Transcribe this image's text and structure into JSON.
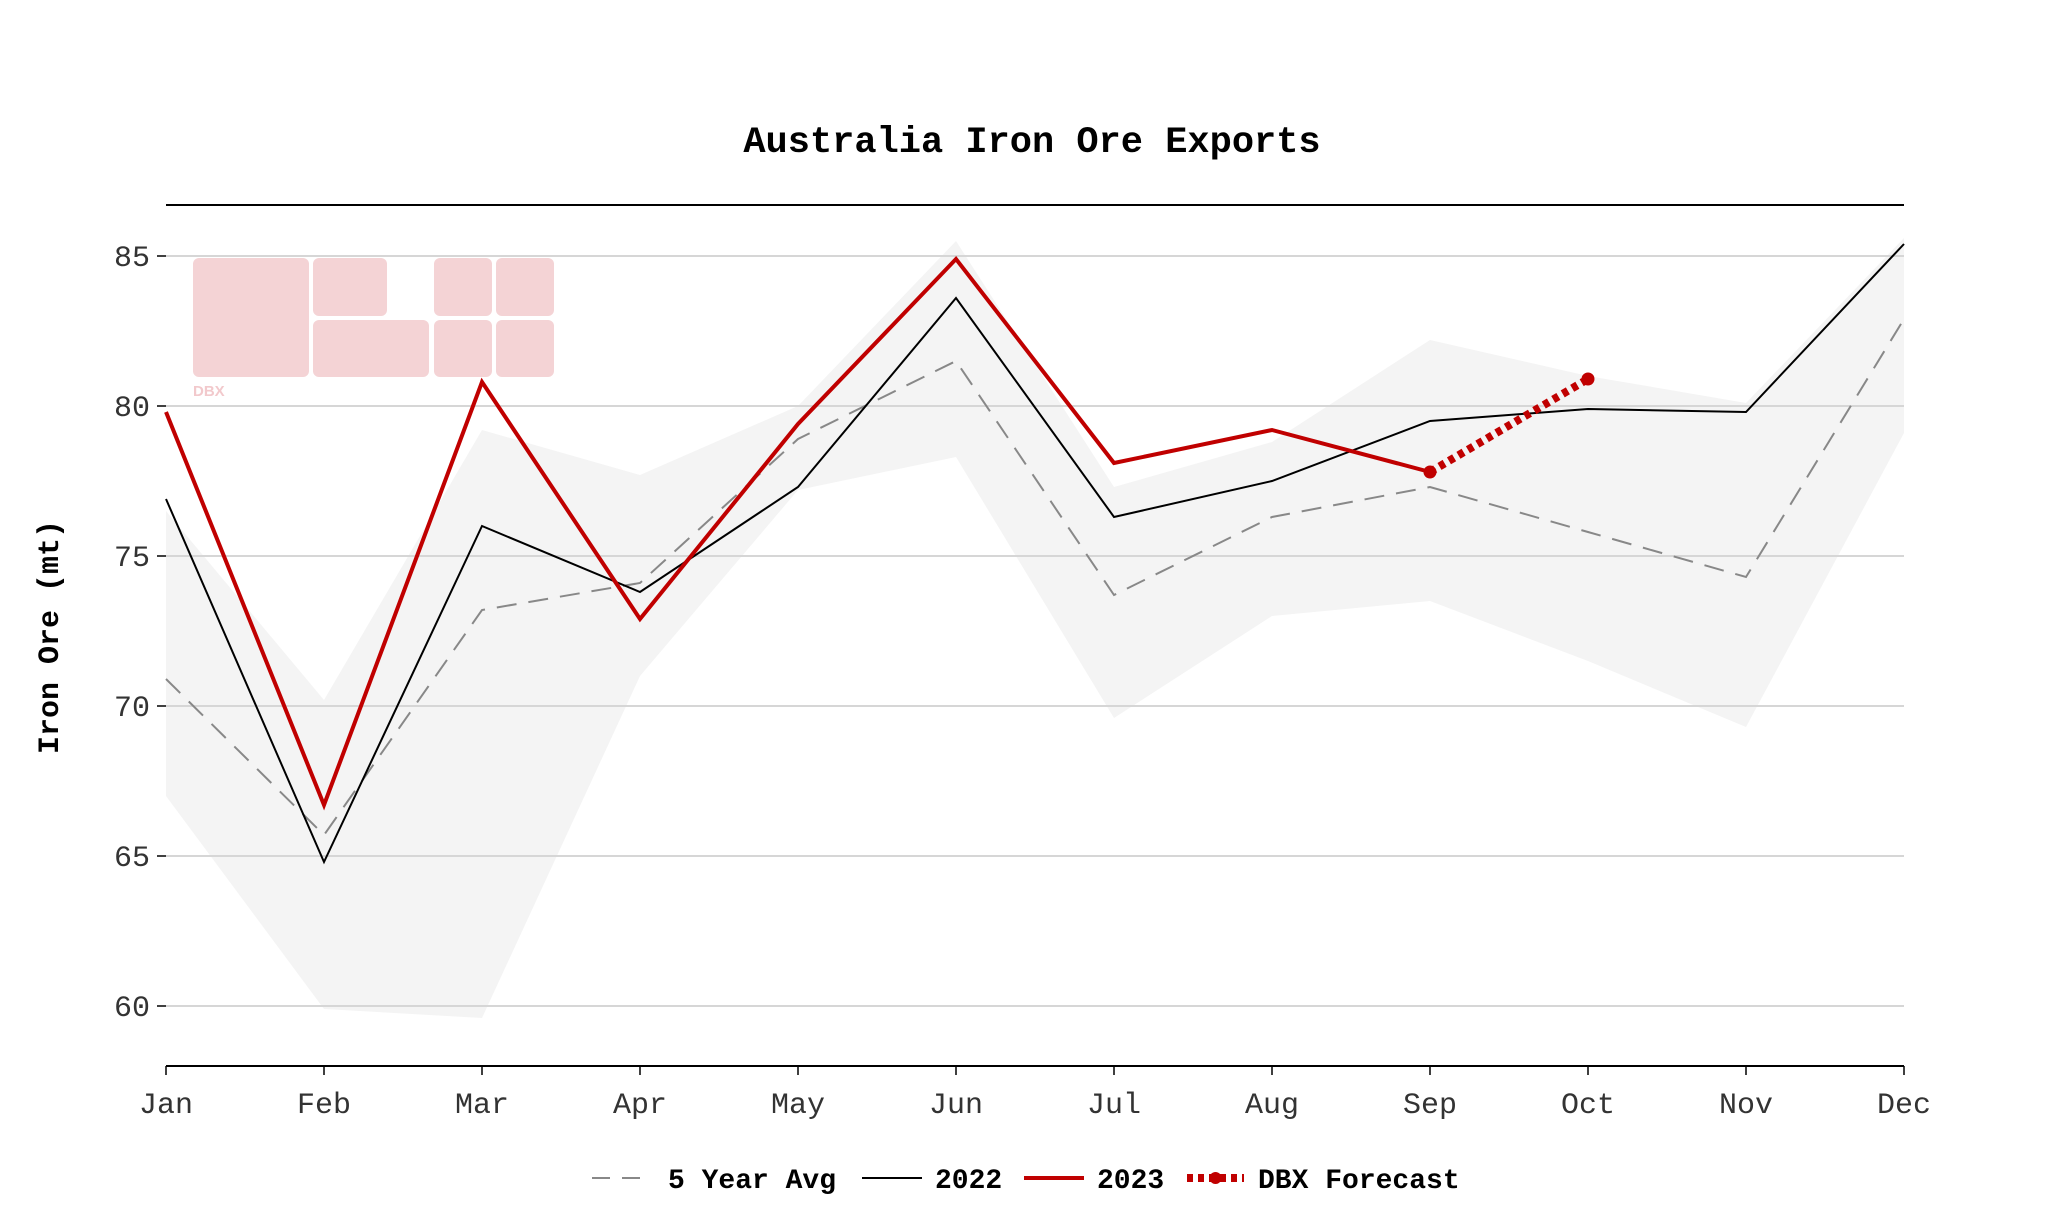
{
  "chart_data": {
    "type": "line",
    "title": "Australia Iron Ore Exports",
    "xlabel": "",
    "ylabel": "Iron Ore (mt)",
    "categories": [
      "Jan",
      "Feb",
      "Mar",
      "Apr",
      "May",
      "Jun",
      "Jul",
      "Aug",
      "Sep",
      "Oct",
      "Nov",
      "Dec"
    ],
    "ylim": [
      58,
      86.7
    ],
    "yticks": [
      60,
      65,
      70,
      75,
      80,
      85
    ],
    "grid": true,
    "legend_position": "bottom",
    "range_band": {
      "upper": [
        76.5,
        70.2,
        79.2,
        77.7,
        80.0,
        85.5,
        77.3,
        78.8,
        82.2,
        81.0,
        80.1,
        85.6
      ],
      "lower": [
        67.0,
        59.9,
        59.6,
        71.0,
        77.2,
        78.3,
        69.6,
        73.0,
        73.5,
        71.5,
        69.3,
        79.1
      ],
      "color": "#f4f4f4"
    },
    "series": [
      {
        "name": "5 Year Avg",
        "values": [
          70.9,
          65.7,
          73.2,
          74.1,
          78.9,
          81.5,
          73.7,
          76.3,
          77.3,
          75.8,
          74.3,
          82.9
        ],
        "color": "#888888",
        "style": "dashed"
      },
      {
        "name": "2022",
        "values": [
          76.9,
          64.8,
          76.0,
          73.8,
          77.3,
          83.6,
          76.3,
          77.5,
          79.5,
          79.9,
          79.8,
          85.4
        ],
        "color": "#000000",
        "style": "solid"
      },
      {
        "name": "2023",
        "values": [
          79.8,
          66.7,
          80.8,
          72.9,
          79.4,
          84.9,
          78.1,
          79.2,
          77.8,
          null,
          null,
          null
        ],
        "color": "#c00000",
        "style": "solid"
      },
      {
        "name": "DBX Forecast",
        "values": [
          null,
          null,
          null,
          null,
          null,
          null,
          null,
          null,
          77.8,
          80.9,
          null,
          null
        ],
        "color": "#c00000",
        "style": "dotted-markers"
      }
    ]
  },
  "logo": {
    "text": "DBX",
    "color": "#f4d3d5"
  }
}
